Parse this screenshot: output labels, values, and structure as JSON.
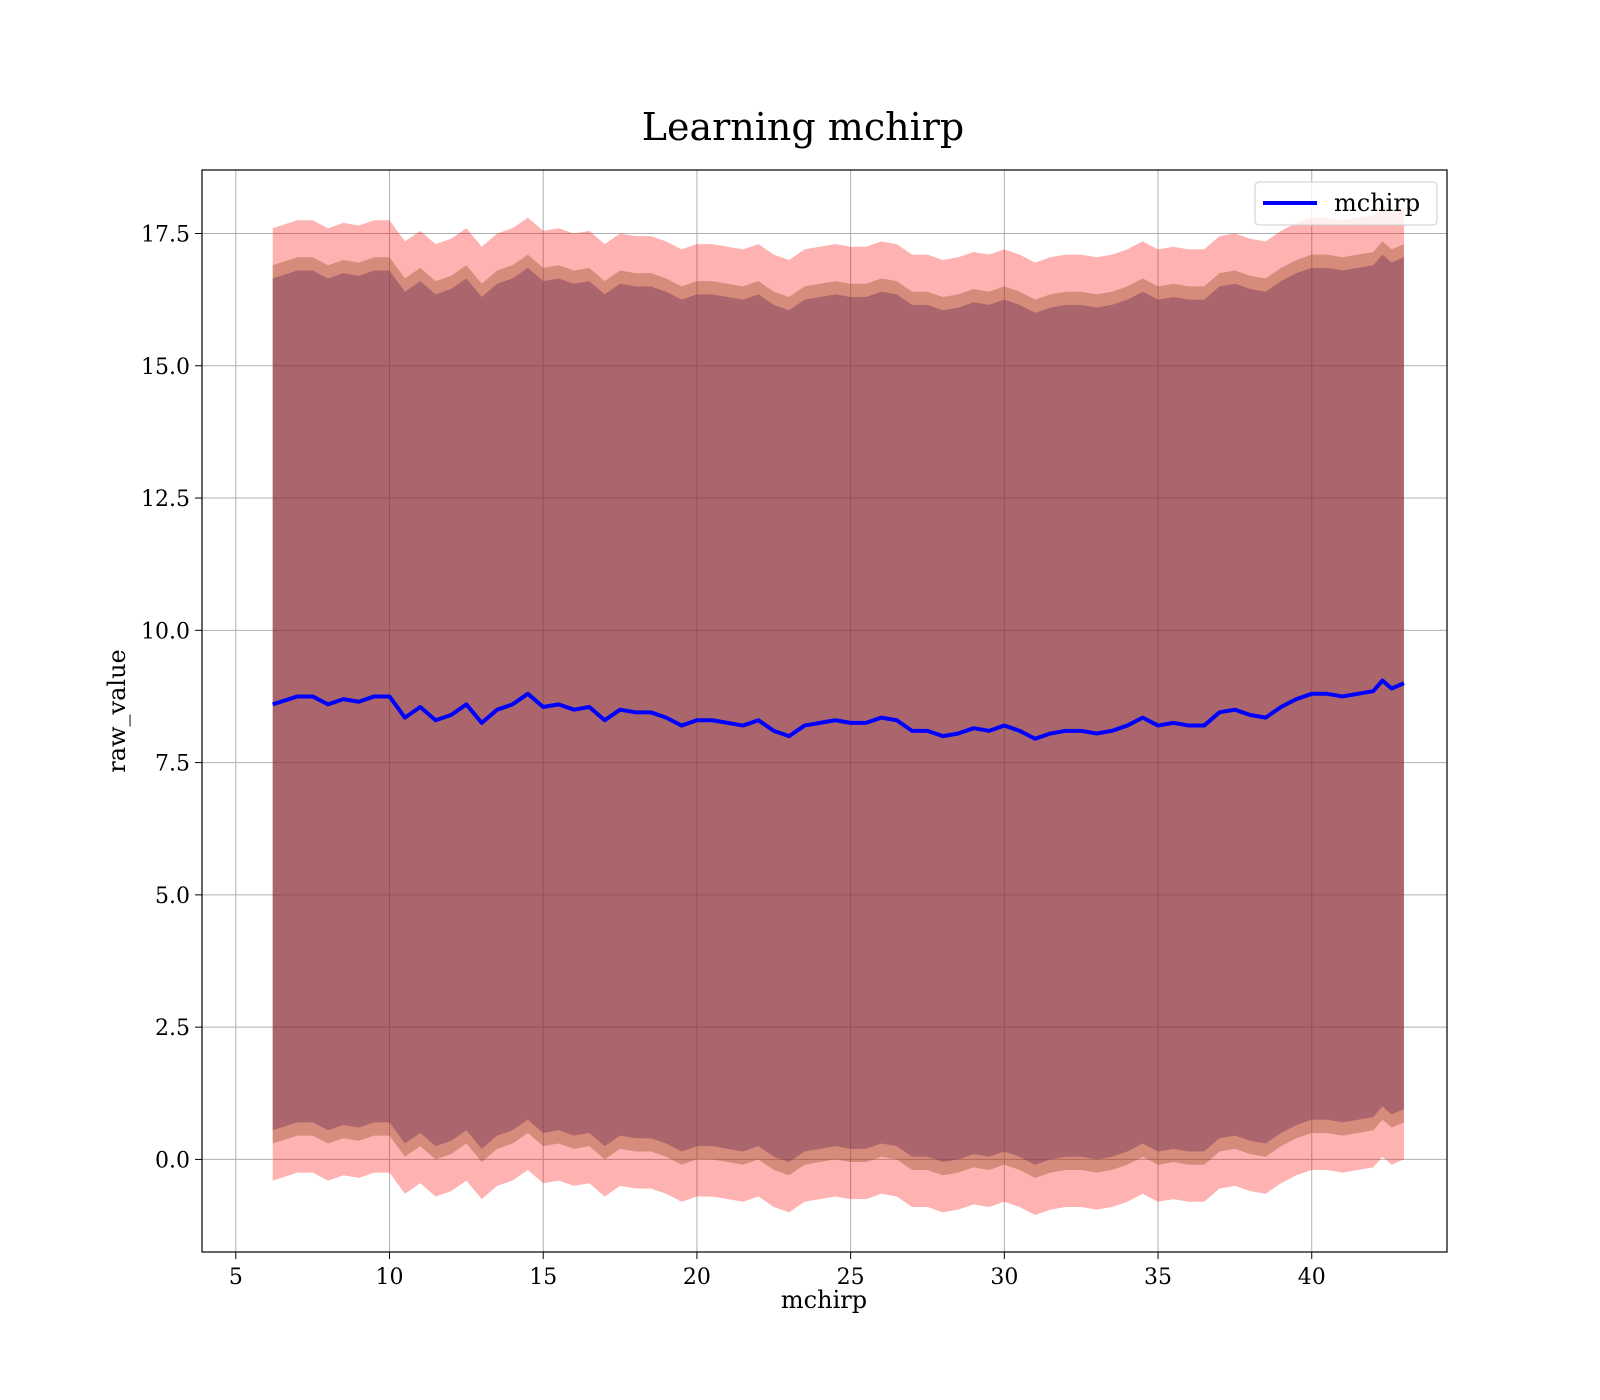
{
  "chart_data": {
    "type": "area",
    "title": "Learning mchirp",
    "xlabel": "mchirp",
    "ylabel": "raw_value",
    "xlim": [
      3.9,
      44.4
    ],
    "ylim": [
      -1.75,
      18.7
    ],
    "xticks": [
      5,
      10,
      15,
      20,
      25,
      30,
      35,
      40
    ],
    "xtick_labels": [
      "5",
      "10",
      "15",
      "20",
      "25",
      "30",
      "35",
      "40"
    ],
    "yticks": [
      0.0,
      2.5,
      5.0,
      7.5,
      10.0,
      12.5,
      15.0,
      17.5
    ],
    "ytick_labels": [
      "0.0",
      "2.5",
      "5.0",
      "7.5",
      "10.0",
      "12.5",
      "15.0",
      "17.5"
    ],
    "grid": true,
    "legend": {
      "position": "top-right",
      "entries": [
        {
          "name": "mchirp",
          "color": "#0000ff"
        }
      ]
    },
    "series": [
      {
        "name": "mchirp",
        "kind": "line",
        "color": "#0000ff",
        "x": [
          6.2,
          7.0,
          7.5,
          8.0,
          8.5,
          9.0,
          9.5,
          10.0,
          10.5,
          11.0,
          11.5,
          12.0,
          12.5,
          13.0,
          13.5,
          14.0,
          14.5,
          15.0,
          15.5,
          16.0,
          16.5,
          17.0,
          17.5,
          18.0,
          18.5,
          19.0,
          19.5,
          20.0,
          20.5,
          21.0,
          21.5,
          22.0,
          22.5,
          23.0,
          23.5,
          24.0,
          24.5,
          25.0,
          25.5,
          26.0,
          26.5,
          27.0,
          27.5,
          28.0,
          28.5,
          29.0,
          29.5,
          30.0,
          30.5,
          31.0,
          31.5,
          32.0,
          32.5,
          33.0,
          33.5,
          34.0,
          34.5,
          35.0,
          35.5,
          36.0,
          36.5,
          37.0,
          37.5,
          38.0,
          38.5,
          39.0,
          39.5,
          40.0,
          40.5,
          41.0,
          41.5,
          42.0,
          42.3,
          42.6,
          43.0
        ],
        "y": [
          8.6,
          8.75,
          8.75,
          8.6,
          8.7,
          8.65,
          8.75,
          8.75,
          8.35,
          8.55,
          8.3,
          8.4,
          8.6,
          8.25,
          8.5,
          8.6,
          8.8,
          8.55,
          8.6,
          8.5,
          8.55,
          8.3,
          8.5,
          8.45,
          8.45,
          8.35,
          8.2,
          8.3,
          8.3,
          8.25,
          8.2,
          8.3,
          8.1,
          8.0,
          8.2,
          8.25,
          8.3,
          8.25,
          8.25,
          8.35,
          8.3,
          8.1,
          8.1,
          8.0,
          8.05,
          8.15,
          8.1,
          8.2,
          8.1,
          7.95,
          8.05,
          8.1,
          8.1,
          8.05,
          8.1,
          8.2,
          8.35,
          8.2,
          8.25,
          8.2,
          8.2,
          8.45,
          8.5,
          8.4,
          8.35,
          8.55,
          8.7,
          8.8,
          8.8,
          8.75,
          8.8,
          8.85,
          9.05,
          8.9,
          9.0
        ]
      },
      {
        "name": "",
        "kind": "band",
        "fill": "#ff0000",
        "opacity": 0.3,
        "offset": 9.0,
        "x": [
          6.2,
          43.0
        ]
      },
      {
        "name": "",
        "kind": "band",
        "fill": "#8b4513",
        "opacity": 0.35,
        "offset": 8.3,
        "x": [
          6.2,
          43.0
        ]
      },
      {
        "name": "",
        "kind": "band",
        "fill": "#6a2c5a",
        "opacity": 0.4,
        "offset": 8.05,
        "x": [
          6.2,
          43.0
        ]
      }
    ]
  }
}
